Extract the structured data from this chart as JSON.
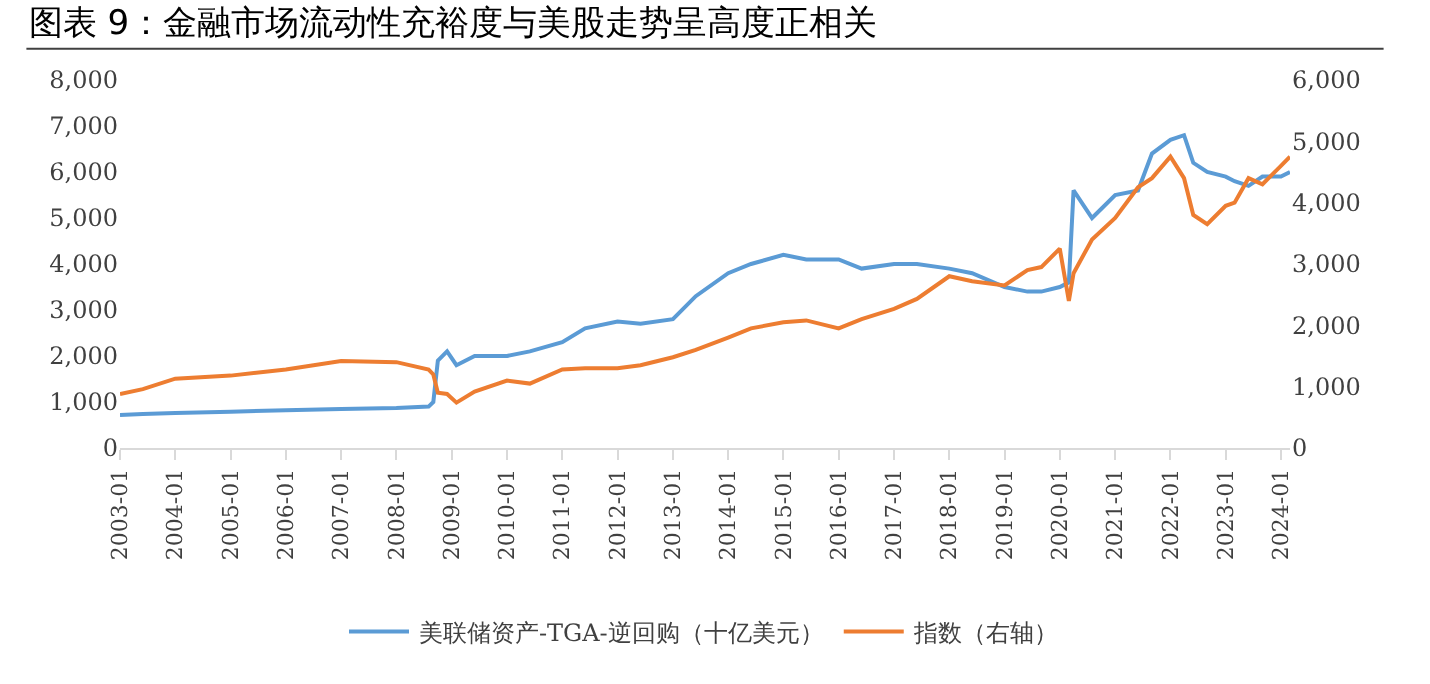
{
  "chart_data": {
    "type": "line",
    "title": "图表 9：金融市场流动性充裕度与美股走势呈高度正相关",
    "x": [
      "2003-01",
      "2003-06",
      "2004-01",
      "2005-01",
      "2006-01",
      "2007-01",
      "2008-01",
      "2008-08",
      "2008-09",
      "2008-10",
      "2008-12",
      "2009-02",
      "2009-06",
      "2010-01",
      "2010-06",
      "2011-01",
      "2011-06",
      "2012-01",
      "2012-06",
      "2013-01",
      "2013-06",
      "2014-01",
      "2014-06",
      "2015-01",
      "2015-06",
      "2016-01",
      "2016-06",
      "2017-01",
      "2017-06",
      "2018-01",
      "2018-06",
      "2019-01",
      "2019-06",
      "2019-09",
      "2020-01",
      "2020-03",
      "2020-04",
      "2020-08",
      "2021-01",
      "2021-06",
      "2021-09",
      "2022-01",
      "2022-04",
      "2022-06",
      "2022-09",
      "2023-01",
      "2023-03",
      "2023-06",
      "2023-09",
      "2024-01",
      "2024-03"
    ],
    "series": [
      {
        "name": "美联储资产-TGA-逆回购（十亿美元）",
        "color": "#5b9bd5",
        "values": [
          720,
          740,
          760,
          790,
          820,
          850,
          870,
          900,
          1000,
          1900,
          2100,
          1800,
          2000,
          2000,
          2100,
          2300,
          2600,
          2750,
          2700,
          2800,
          3300,
          3800,
          4000,
          4200,
          4100,
          4100,
          3900,
          4000,
          4000,
          3900,
          3800,
          3500,
          3400,
          3400,
          3500,
          3600,
          5600,
          5000,
          5500,
          5600,
          6400,
          6700,
          6800,
          6200,
          6000,
          5900,
          5800,
          5700,
          5900,
          5900,
          6000
        ]
      },
      {
        "name": "指数（右轴）",
        "color": "#ed7d31",
        "axis": "y2",
        "values": [
          880,
          960,
          1130,
          1180,
          1280,
          1420,
          1400,
          1280,
          1200,
          900,
          880,
          740,
          920,
          1100,
          1050,
          1280,
          1300,
          1300,
          1350,
          1480,
          1600,
          1800,
          1950,
          2050,
          2080,
          1950,
          2100,
          2270,
          2430,
          2800,
          2720,
          2650,
          2900,
          2950,
          3250,
          2400,
          2850,
          3400,
          3750,
          4250,
          4400,
          4750,
          4400,
          3800,
          3650,
          3950,
          4000,
          4400,
          4300,
          4600,
          4750
        ]
      }
    ],
    "xlim": [
      "2003-01",
      "2024-03"
    ],
    "xticks": [
      "2003-01",
      "2004-01",
      "2005-01",
      "2006-01",
      "2007-01",
      "2008-01",
      "2009-01",
      "2010-01",
      "2011-01",
      "2012-01",
      "2013-01",
      "2014-01",
      "2015-01",
      "2016-01",
      "2017-01",
      "2018-01",
      "2019-01",
      "2020-01",
      "2021-01",
      "2022-01",
      "2023-01",
      "2024-01"
    ],
    "ylim": [
      0,
      8000
    ],
    "yticks": [
      {
        "value": 0,
        "label": "0"
      },
      {
        "value": 1000,
        "label": "1,000"
      },
      {
        "value": 2000,
        "label": "2,000"
      },
      {
        "value": 3000,
        "label": "3,000"
      },
      {
        "value": 4000,
        "label": "4,000"
      },
      {
        "value": 5000,
        "label": "5,000"
      },
      {
        "value": 6000,
        "label": "6,000"
      },
      {
        "value": 7000,
        "label": "7,000"
      },
      {
        "value": 8000,
        "label": "8,000"
      }
    ],
    "y2lim": [
      0,
      6000
    ],
    "y2ticks": [
      {
        "value": 0,
        "label": "0"
      },
      {
        "value": 1000,
        "label": "1,000"
      },
      {
        "value": 2000,
        "label": "2,000"
      },
      {
        "value": 3000,
        "label": "3,000"
      },
      {
        "value": 4000,
        "label": "4,000"
      },
      {
        "value": 5000,
        "label": "5,000"
      },
      {
        "value": 6000,
        "label": "6,000"
      }
    ],
    "legend": "bottom",
    "line_style": "solid",
    "marker": "none"
  }
}
